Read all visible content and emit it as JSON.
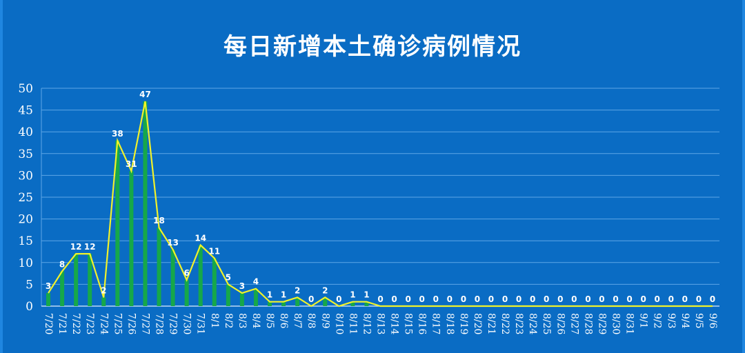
{
  "chart_data": {
    "type": "bar",
    "title": "每日新增本土确诊病例情况",
    "xlabel": "",
    "ylabel": "",
    "ylim": [
      0,
      50
    ],
    "yticks": [
      0,
      5,
      10,
      15,
      20,
      25,
      30,
      35,
      40,
      45,
      50
    ],
    "grid": true,
    "categories": [
      "7/20",
      "7/21",
      "7/22",
      "7/23",
      "7/24",
      "7/25",
      "7/26",
      "7/27",
      "7/28",
      "7/29",
      "7/30",
      "7/31",
      "8/1",
      "8/2",
      "8/3",
      "8/4",
      "8/5",
      "8/6",
      "8/7",
      "8/8",
      "8/9",
      "8/10",
      "8/11",
      "8/12",
      "8/13",
      "8/14",
      "8/15",
      "8/16",
      "8/17",
      "8/18",
      "8/19",
      "8/20",
      "8/21",
      "8/22",
      "8/23",
      "8/24",
      "8/25",
      "8/26",
      "8/27",
      "8/28",
      "8/29",
      "8/30",
      "8/31",
      "9/1",
      "9/2",
      "9/3",
      "9/4",
      "9/5",
      "9/6"
    ],
    "values": [
      3,
      8,
      12,
      12,
      2,
      38,
      31,
      47,
      18,
      13,
      6,
      14,
      11,
      5,
      3,
      4,
      1,
      1,
      2,
      0,
      2,
      0,
      1,
      1,
      0,
      0,
      0,
      0,
      0,
      0,
      0,
      0,
      0,
      0,
      0,
      0,
      0,
      0,
      0,
      0,
      0,
      0,
      0,
      0,
      0,
      0,
      0,
      0,
      0
    ],
    "overlay": "line",
    "colors": {
      "background": "#0a6cc4",
      "bar": "#16a84a",
      "line": "#f2f229",
      "grid": "#5ea6e6",
      "text": "#ffffff"
    }
  }
}
